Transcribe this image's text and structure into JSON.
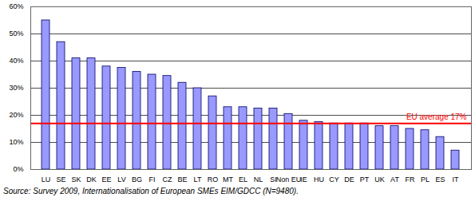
{
  "chart_data": {
    "type": "bar",
    "caption": "Source: Survey 2009, Internationalisation of European SMEs EIM/GDCC (N=9480).",
    "categories": [
      "LU",
      "SE",
      "SK",
      "DK",
      "EE",
      "LV",
      "BG",
      "FI",
      "CZ",
      "BE",
      "LT",
      "RO",
      "MT",
      "EL",
      "NL",
      "SI",
      "Non EU",
      "IE",
      "HU",
      "CY",
      "DE",
      "PT",
      "UK",
      "AT",
      "FR",
      "PL",
      "ES",
      "IT"
    ],
    "values": [
      55,
      47,
      41,
      41,
      38,
      37.5,
      36,
      35,
      34.5,
      32,
      30,
      27,
      23,
      23,
      22.5,
      22.5,
      20.5,
      18,
      17.5,
      17,
      17,
      17,
      16,
      16,
      15,
      14.5,
      12,
      7
    ],
    "color": "#9999ff",
    "ylim": [
      0,
      60
    ],
    "yticks": [
      {
        "value": 0,
        "label": "0%"
      },
      {
        "value": 10,
        "label": "10%"
      },
      {
        "value": 20,
        "label": "20%"
      },
      {
        "value": 30,
        "label": "30%"
      },
      {
        "value": 40,
        "label": "40%"
      },
      {
        "value": 50,
        "label": "50%"
      },
      {
        "value": 60,
        "label": "60%"
      }
    ],
    "grid": true,
    "reference_line": {
      "value": 17,
      "label": "EU average 17%",
      "color": "#ff0000"
    }
  }
}
